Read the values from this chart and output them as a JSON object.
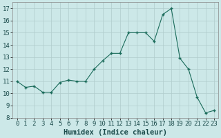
{
  "x": [
    0,
    1,
    2,
    3,
    4,
    5,
    6,
    7,
    8,
    9,
    10,
    11,
    12,
    13,
    14,
    15,
    16,
    17,
    18,
    19,
    20,
    21,
    22,
    23
  ],
  "y": [
    11.0,
    10.5,
    10.6,
    10.1,
    10.1,
    10.9,
    11.1,
    11.0,
    11.0,
    12.0,
    12.7,
    13.3,
    13.3,
    15.0,
    15.0,
    15.0,
    14.3,
    16.5,
    17.0,
    12.9,
    12.0,
    9.7,
    8.4,
    8.6
  ],
  "xlabel": "Humidex (Indice chaleur)",
  "xlim": [
    -0.5,
    23.5
  ],
  "ylim": [
    8,
    17.5
  ],
  "yticks": [
    8,
    9,
    10,
    11,
    12,
    13,
    14,
    15,
    16,
    17
  ],
  "xticks": [
    0,
    1,
    2,
    3,
    4,
    5,
    6,
    7,
    8,
    9,
    10,
    11,
    12,
    13,
    14,
    15,
    16,
    17,
    18,
    19,
    20,
    21,
    22,
    23
  ],
  "line_color": "#1a6b5a",
  "marker": "+",
  "bg_color": "#cce8e8",
  "grid_color": "#b0cccc",
  "label_fontsize": 7.5,
  "tick_fontsize": 6.5
}
